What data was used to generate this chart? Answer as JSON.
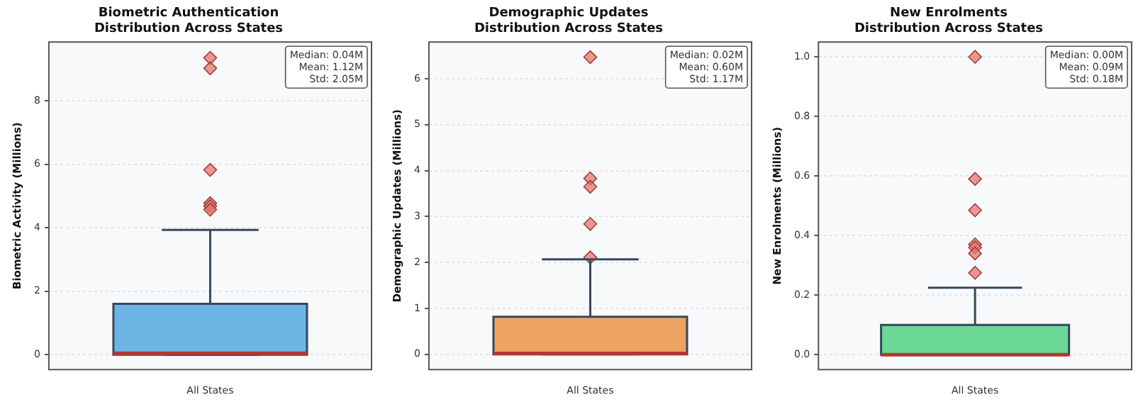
{
  "chart_data": [
    {
      "type": "box",
      "title": "Biometric Authentication\nDistribution Across States",
      "ylabel": "Biometric Activity (Millions)",
      "categories": [
        "All States"
      ],
      "color": "#6cb4e4",
      "boxes": [
        {
          "low": 0,
          "q1": 0,
          "median": 0.04,
          "q3": 1.6,
          "high": 3.93,
          "outliers": [
            9.35,
            9.02,
            5.82,
            4.77,
            4.68,
            4.57
          ]
        }
      ],
      "ylim": [
        -0.47,
        9.85
      ],
      "yticks": [
        0,
        2,
        4,
        6,
        8
      ],
      "grid": "y",
      "annotations": [
        "Median: 0.04M",
        "Mean: 1.12M",
        "Std: 2.05M"
      ]
    },
    {
      "type": "box",
      "title": "Demographic Updates\nDistribution Across States",
      "ylabel": "Demographic Updates (Millions)",
      "categories": [
        "All States"
      ],
      "color": "#eda460",
      "boxes": [
        {
          "low": 0,
          "q1": 0,
          "median": 0.02,
          "q3": 0.82,
          "high": 2.07,
          "outliers": [
            6.47,
            3.83,
            3.65,
            2.84,
            2.11
          ]
        }
      ],
      "ylim": [
        -0.33,
        6.8
      ],
      "yticks": [
        0,
        1,
        2,
        3,
        4,
        5,
        6
      ],
      "grid": "y",
      "annotations": [
        "Median: 0.02M",
        "Mean: 0.60M",
        "Std: 1.17M"
      ]
    },
    {
      "type": "box",
      "title": "New Enrolments\nDistribution Across States",
      "ylabel": "New Enrolments (Millions)",
      "categories": [
        "All States"
      ],
      "color": "#6ad894",
      "boxes": [
        {
          "low": 0,
          "q1": 0,
          "median": 0.0,
          "q3": 0.1,
          "high": 0.225,
          "outliers": [
            1.0,
            0.59,
            0.485,
            0.37,
            0.36,
            0.34,
            0.275
          ]
        }
      ],
      "ylim": [
        -0.05,
        1.05
      ],
      "yticks": [
        {
          "value": 0,
          "label": "0.0"
        },
        {
          "value": 0.2,
          "label": "0.2"
        },
        {
          "value": 0.4,
          "label": "0.4"
        },
        {
          "value": 0.6,
          "label": "0.6"
        },
        {
          "value": 0.8,
          "label": "0.8"
        },
        {
          "value": 1.0,
          "label": "1.0"
        }
      ],
      "grid": "y",
      "annotations": [
        "Median: 0.00M",
        "Mean: 0.09M",
        "Std: 0.18M"
      ]
    }
  ]
}
